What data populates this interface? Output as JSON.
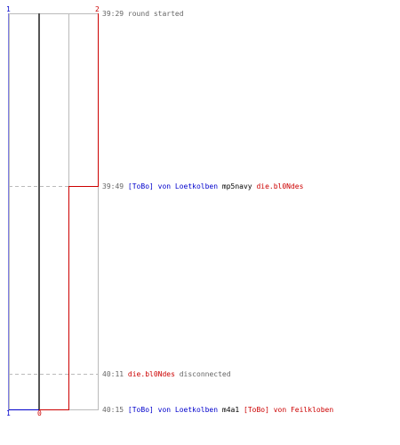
{
  "colors": {
    "blue": "#0000cc",
    "red": "#cc0000",
    "grid": "#bbbbbb",
    "dash": "#bbbbbb",
    "axis": "#555555",
    "text": "#666666"
  },
  "score_labels": {
    "blue_top": "1",
    "red_top": "2",
    "blue_bottom": "1",
    "red_bottom": "0"
  },
  "events": [
    {
      "time": "39:29",
      "parts": [
        {
          "text": "round started",
          "style": "plain"
        }
      ]
    },
    {
      "time": "39:49",
      "parts": [
        {
          "text": "[ToBo] von Loetkolben",
          "style": "blue"
        },
        {
          "text": "mp5navy",
          "style": "dark"
        },
        {
          "text": "die.bl0Ndes",
          "style": "red"
        }
      ]
    },
    {
      "time": "40:11",
      "parts": [
        {
          "text": "die.bl0Ndes",
          "style": "red"
        },
        {
          "text": "disconnected",
          "style": "plain"
        }
      ]
    },
    {
      "time": "40:15",
      "parts": [
        {
          "text": "[ToBo] von Loetkolben",
          "style": "blue"
        },
        {
          "text": "m4a1",
          "style": "dark"
        },
        {
          "text": "[ToBo] von Feilkloben",
          "style": "red"
        }
      ]
    }
  ],
  "red_player_count": {
    "start": 2,
    "after_event_2": 1,
    "after_event_4": 0
  }
}
